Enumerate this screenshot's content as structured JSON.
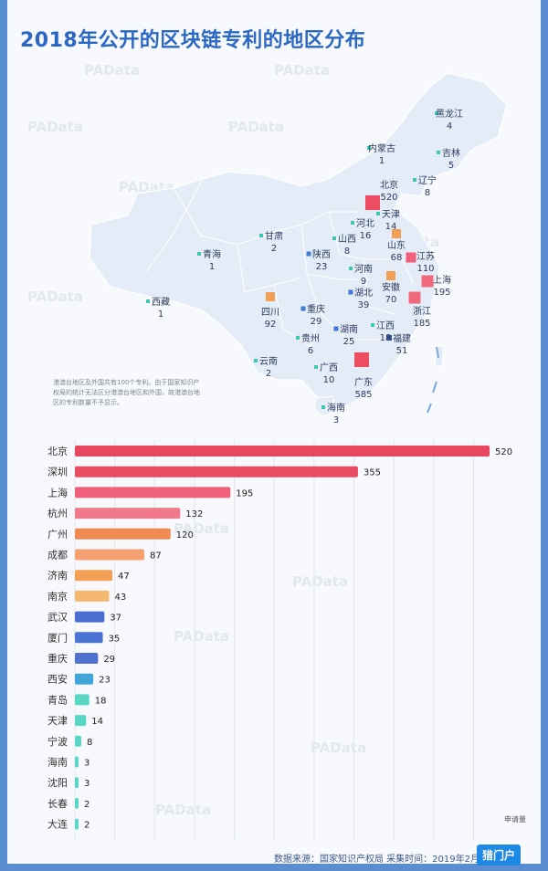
{
  "title": "2018年公开的区块链专利的地区分布",
  "watermark": "PAData",
  "map": {
    "note": "港澳台地区及外国共有100个专利。由于国家知识产权局的统计无法区分港澳台地区和外国，故港澳台地区的专利数量不予显示。",
    "provinces": [
      {
        "name": "黑龙江",
        "value": "4"
      },
      {
        "name": "吉林",
        "value": "5"
      },
      {
        "name": "内蒙古",
        "value": "1"
      },
      {
        "name": "辽宁",
        "value": "8"
      },
      {
        "name": "北京",
        "value": "520"
      },
      {
        "name": "天津",
        "value": "14"
      },
      {
        "name": "河北",
        "value": "16"
      },
      {
        "name": "甘肃",
        "value": "2"
      },
      {
        "name": "山西",
        "value": "8"
      },
      {
        "name": "山东",
        "value": "68"
      },
      {
        "name": "青海",
        "value": "1"
      },
      {
        "name": "陕西",
        "value": "23"
      },
      {
        "name": "河南",
        "value": "9"
      },
      {
        "name": "江苏",
        "value": "110"
      },
      {
        "name": "上海",
        "value": "195"
      },
      {
        "name": "安徽",
        "value": "70"
      },
      {
        "name": "湖北",
        "value": "39"
      },
      {
        "name": "西藏",
        "value": "1"
      },
      {
        "name": "四川",
        "value": "92"
      },
      {
        "name": "重庆",
        "value": "29"
      },
      {
        "name": "浙江",
        "value": "185"
      },
      {
        "name": "湖南",
        "value": "25"
      },
      {
        "name": "江西",
        "value": "18"
      },
      {
        "name": "贵州",
        "value": "6"
      },
      {
        "name": "福建",
        "value": "51"
      },
      {
        "name": "云南",
        "value": "2"
      },
      {
        "name": "广西",
        "value": "10"
      },
      {
        "name": "广东",
        "value": "585"
      },
      {
        "name": "海南",
        "value": "3"
      }
    ]
  },
  "chart_data": {
    "type": "bar",
    "orientation": "horizontal",
    "categories": [
      "北京",
      "深圳",
      "上海",
      "杭州",
      "广州",
      "成都",
      "济南",
      "南京",
      "武汉",
      "厦门",
      "重庆",
      "西安",
      "青岛",
      "天津",
      "宁波",
      "海南",
      "沈阳",
      "长春",
      "大连"
    ],
    "values": [
      520,
      355,
      195,
      132,
      120,
      87,
      47,
      43,
      37,
      35,
      29,
      23,
      18,
      14,
      8,
      3,
      3,
      2,
      2
    ],
    "colors": [
      "#e8475f",
      "#e94b62",
      "#f0607a",
      "#f07a8a",
      "#f08a50",
      "#f5a070",
      "#f3a055",
      "#f5b870",
      "#4a6fd0",
      "#4a74d4",
      "#4f72cf",
      "#43a4d8",
      "#5ad6c4",
      "#5ad6c4",
      "#5ad6c4",
      "#5ad6c4",
      "#5ad6c4",
      "#5ad6c4",
      "#5ad6c4"
    ],
    "xticks": [
      0,
      50,
      100,
      150,
      200,
      250,
      300,
      350,
      400,
      450,
      500
    ],
    "xlim": [
      0,
      520
    ],
    "unit_label": "申请量",
    "grid": true
  },
  "footer": "数据来源：国家知识产权局  采集时间：2019年2月 日",
  "logo": "猎门户"
}
